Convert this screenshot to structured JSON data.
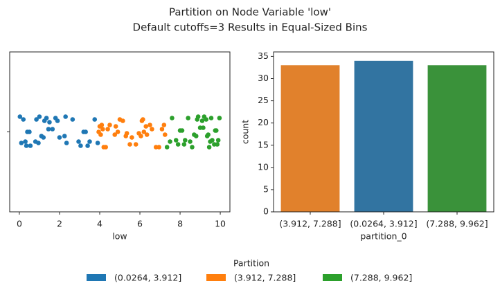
{
  "title": [
    "Partition on Node Variable 'low'",
    "Default cutoffs=3 Results in Equal-Sized Bins"
  ],
  "legend_title": "Partition",
  "chart_data": [
    {
      "type": "strip",
      "xlabel": "low",
      "categories": [
        null
      ],
      "xlim": [
        -0.48,
        10.48
      ],
      "xticks": [
        0,
        2,
        4,
        6,
        8,
        10
      ],
      "series": [
        {
          "name": "(0.0264, 3.912]",
          "color": "#1f77b4",
          "values": [
            0.03,
            0.1,
            0.2,
            0.3,
            0.35,
            0.4,
            0.5,
            0.55,
            0.8,
            0.85,
            0.95,
            1.0,
            1.1,
            1.2,
            1.25,
            1.35,
            1.45,
            1.5,
            1.65,
            1.8,
            1.9,
            2.0,
            2.25,
            2.3,
            2.35,
            2.65,
            2.95,
            3.05,
            3.2,
            3.3,
            3.4,
            3.5,
            3.75,
            3.9
          ]
        },
        {
          "name": "(3.912, 7.288]",
          "color": "#ff7f0e",
          "values": [
            3.95,
            4.0,
            4.05,
            4.1,
            4.15,
            4.2,
            4.3,
            4.4,
            4.5,
            4.75,
            4.8,
            4.9,
            5.0,
            5.15,
            5.3,
            5.35,
            5.5,
            5.6,
            5.8,
            5.95,
            6.05,
            6.1,
            6.15,
            6.2,
            6.3,
            6.35,
            6.5,
            6.6,
            6.8,
            6.95,
            7.1,
            7.2,
            7.25
          ]
        },
        {
          "name": "(7.288, 9.962]",
          "color": "#2ca02c",
          "values": [
            7.35,
            7.5,
            7.6,
            7.8,
            7.9,
            8.0,
            8.1,
            8.2,
            8.25,
            8.4,
            8.5,
            8.6,
            8.7,
            8.8,
            8.85,
            8.9,
            9.0,
            9.1,
            9.15,
            9.2,
            9.3,
            9.35,
            9.4,
            9.45,
            9.5,
            9.55,
            9.6,
            9.7,
            9.75,
            9.8,
            9.85,
            9.9,
            9.96
          ]
        }
      ]
    },
    {
      "type": "bar",
      "xlabel": "partition_0",
      "ylabel": "count",
      "categories": [
        "(3.912, 7.288]",
        "(0.0264, 3.912]",
        "(7.288, 9.962]"
      ],
      "values": [
        33,
        34,
        33
      ],
      "colors": [
        "#e1812c",
        "#3274a1",
        "#3a923a"
      ],
      "ylim": [
        0,
        36
      ],
      "yticks": [
        0,
        5,
        10,
        15,
        20,
        25,
        30,
        35
      ]
    }
  ]
}
